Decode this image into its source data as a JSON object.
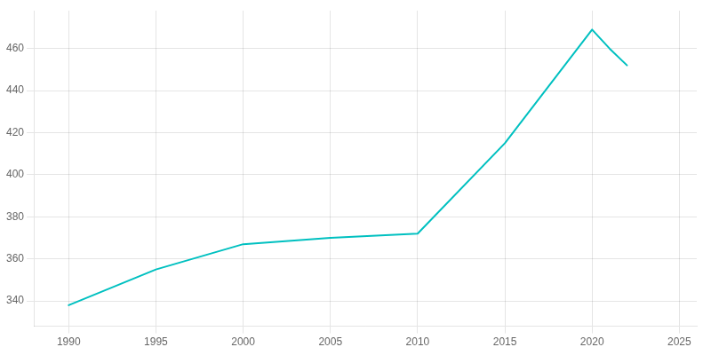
{
  "chart_data": {
    "type": "line",
    "x": [
      1990,
      1995,
      2000,
      2005,
      2010,
      2015,
      2020,
      2021,
      2022
    ],
    "values": [
      338,
      355,
      367,
      370,
      372,
      415,
      469,
      460,
      452
    ],
    "color": "#00c0c0",
    "xlim": [
      1988,
      2026
    ],
    "xticks": [
      1990,
      1995,
      2000,
      2005,
      2010,
      2015,
      2020,
      2025
    ],
    "ylim": [
      328,
      478
    ],
    "yticks": [
      340,
      360,
      380,
      400,
      420,
      440,
      460
    ],
    "grid": true
  }
}
